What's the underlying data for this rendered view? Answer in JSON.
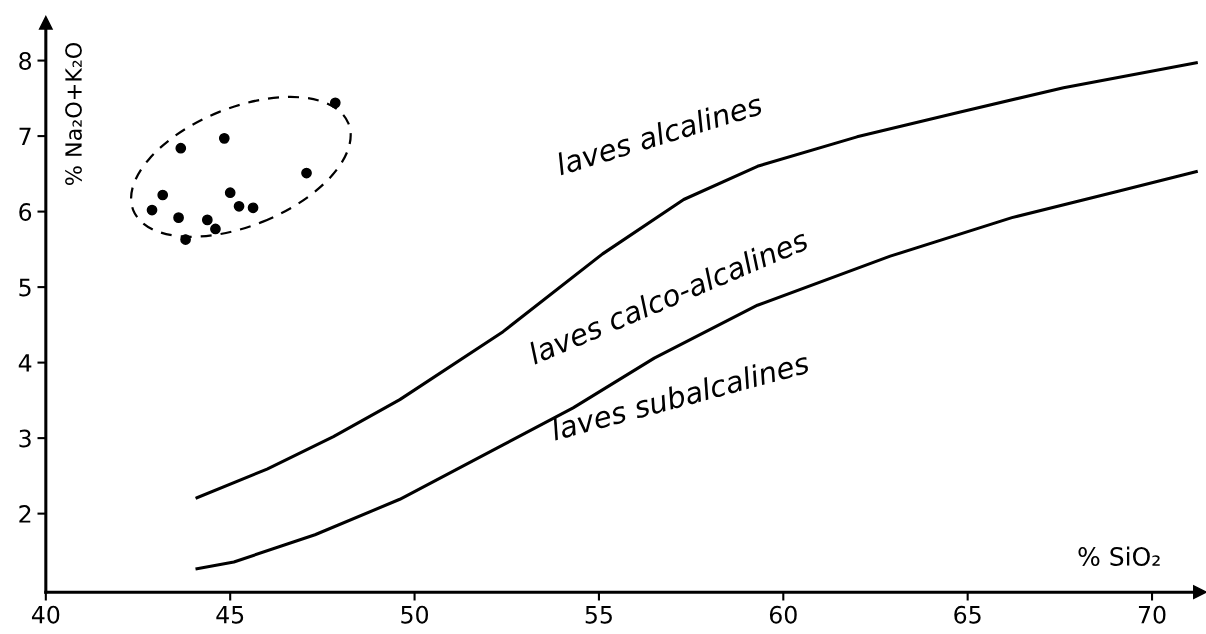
{
  "chart_data": {
    "type": "line",
    "xlabel": "% SiO₂",
    "ylabel": "% Na₂O+K₂O",
    "xlim": [
      40,
      71.3
    ],
    "ylim": [
      0.96,
      8.5
    ],
    "xticks": [
      40,
      45,
      50,
      55,
      60,
      65,
      70
    ],
    "yticks": [
      2,
      3,
      4,
      5,
      6,
      7,
      8
    ],
    "grid": false,
    "line_style": "solid",
    "series": [
      {
        "color": "#000000",
        "x": [
          44.1,
          46.0,
          47.8,
          49.6,
          52.4,
          55.1,
          57.3,
          59.3,
          62.0,
          64.8,
          67.6,
          71.2
        ],
        "values": [
          2.21,
          2.59,
          3.02,
          3.51,
          4.41,
          5.44,
          6.16,
          6.6,
          6.99,
          7.32,
          7.64,
          7.97
        ]
      },
      {
        "color": "#000000",
        "x": [
          44.1,
          45.1,
          47.3,
          49.6,
          52.4,
          54.3,
          56.5,
          59.3,
          62.9,
          66.2,
          69.0,
          71.2
        ],
        "values": [
          1.27,
          1.36,
          1.72,
          2.19,
          2.91,
          3.4,
          4.06,
          4.76,
          5.41,
          5.92,
          6.26,
          6.53
        ]
      },
      {
        "type": "scatter",
        "color": "#000000",
        "marker": "circle",
        "x": [
          47.85,
          44.84,
          43.66,
          47.07,
          43.17,
          45.0,
          42.88,
          45.24,
          45.62,
          43.6,
          44.38,
          44.6,
          43.79
        ],
        "values": [
          7.44,
          6.97,
          6.84,
          6.51,
          6.22,
          6.25,
          6.02,
          6.07,
          6.05,
          5.92,
          5.89,
          5.77,
          5.63
        ]
      }
    ],
    "annotations": [
      "laves alcalines",
      "laves calco-alcalines",
      "laves subalcalines"
    ]
  }
}
